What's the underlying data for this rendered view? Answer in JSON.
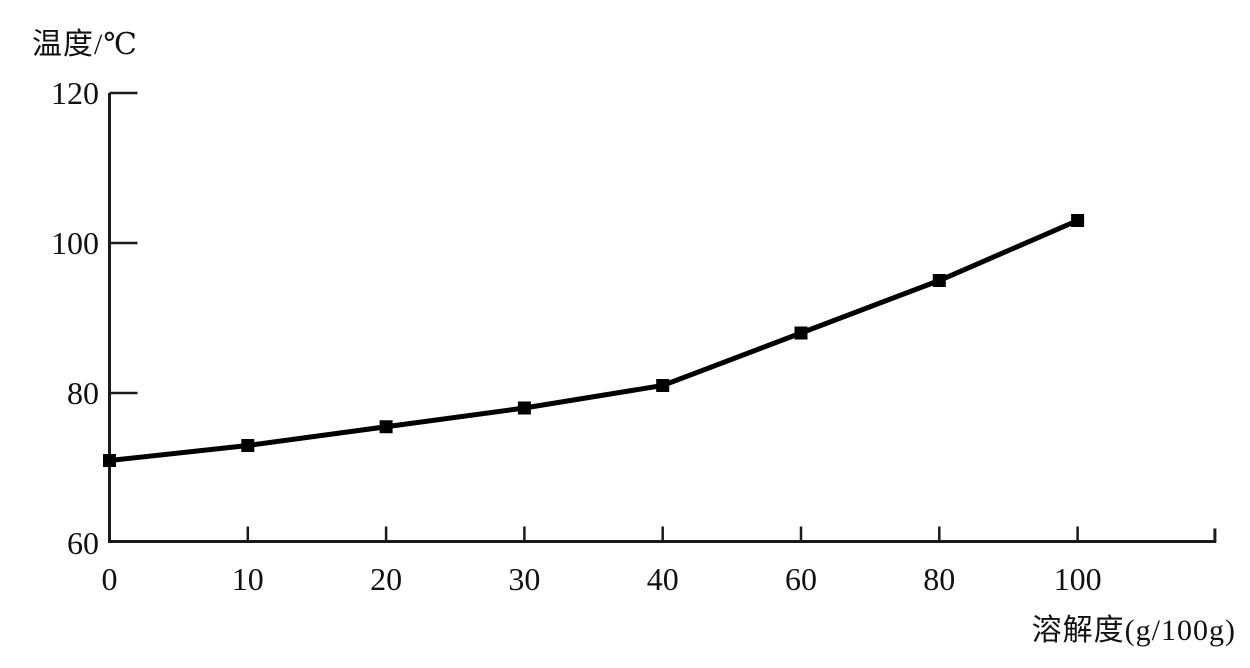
{
  "chart_data": {
    "type": "line",
    "title": "",
    "ylabel": "温度/℃",
    "xlabel": "溶解度(g/100g)",
    "categories": [
      "0",
      "10",
      "20",
      "30",
      "40",
      "60",
      "80",
      "100"
    ],
    "values": [
      71,
      73,
      75.5,
      78,
      81,
      88,
      95,
      103
    ],
    "y_ticks": [
      60,
      80,
      100,
      120
    ],
    "ylim": [
      60,
      120
    ],
    "grid": "off",
    "legend": "none",
    "marker": "square",
    "line_color": "#000000",
    "marker_color": "#000000",
    "axis_color": "#1a1a1a",
    "background": "#ffffff"
  }
}
